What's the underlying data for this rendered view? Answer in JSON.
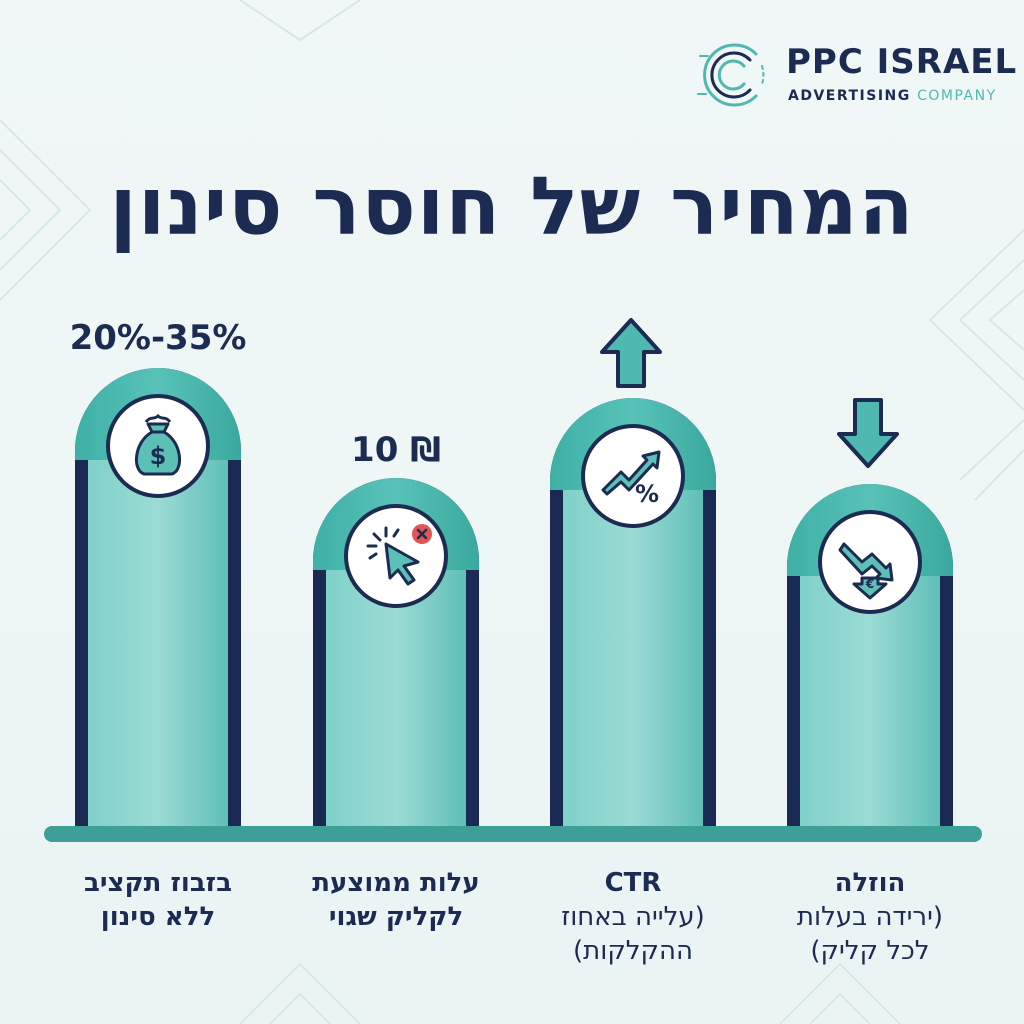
{
  "logo": {
    "name": "PPC ISRAEL",
    "tagline_word1": "ADVERTISING",
    "tagline_word2": "COMPANY"
  },
  "title": "המחיר של חוסר סינון",
  "items": [
    {
      "value": "20%-35%",
      "icon": "money-bag-icon",
      "caption_line1": "בזבוז תקציב",
      "caption_line2": "ללא סינון"
    },
    {
      "value": "10 ₪",
      "icon": "cursor-click-error-icon",
      "caption_line1": "עלות ממוצעת",
      "caption_line2": "לקליק שגוי"
    },
    {
      "indicator": "arrow-up-icon",
      "icon": "trend-percent-icon",
      "caption_line1": "CTR",
      "caption_line2": "(עלייה באחוז",
      "caption_line3": "ההקלקות)"
    },
    {
      "indicator": "arrow-down-icon",
      "icon": "down-trend-coin-icon",
      "caption_line1": "הוזלה",
      "caption_line2": "(ירידה בעלות",
      "caption_line3": "לכל קליק)"
    }
  ],
  "colors": {
    "navy": "#1c2b52",
    "teal": "#4fb8b0",
    "teal_dark": "#3e9f97",
    "error_red": "#e25555"
  }
}
